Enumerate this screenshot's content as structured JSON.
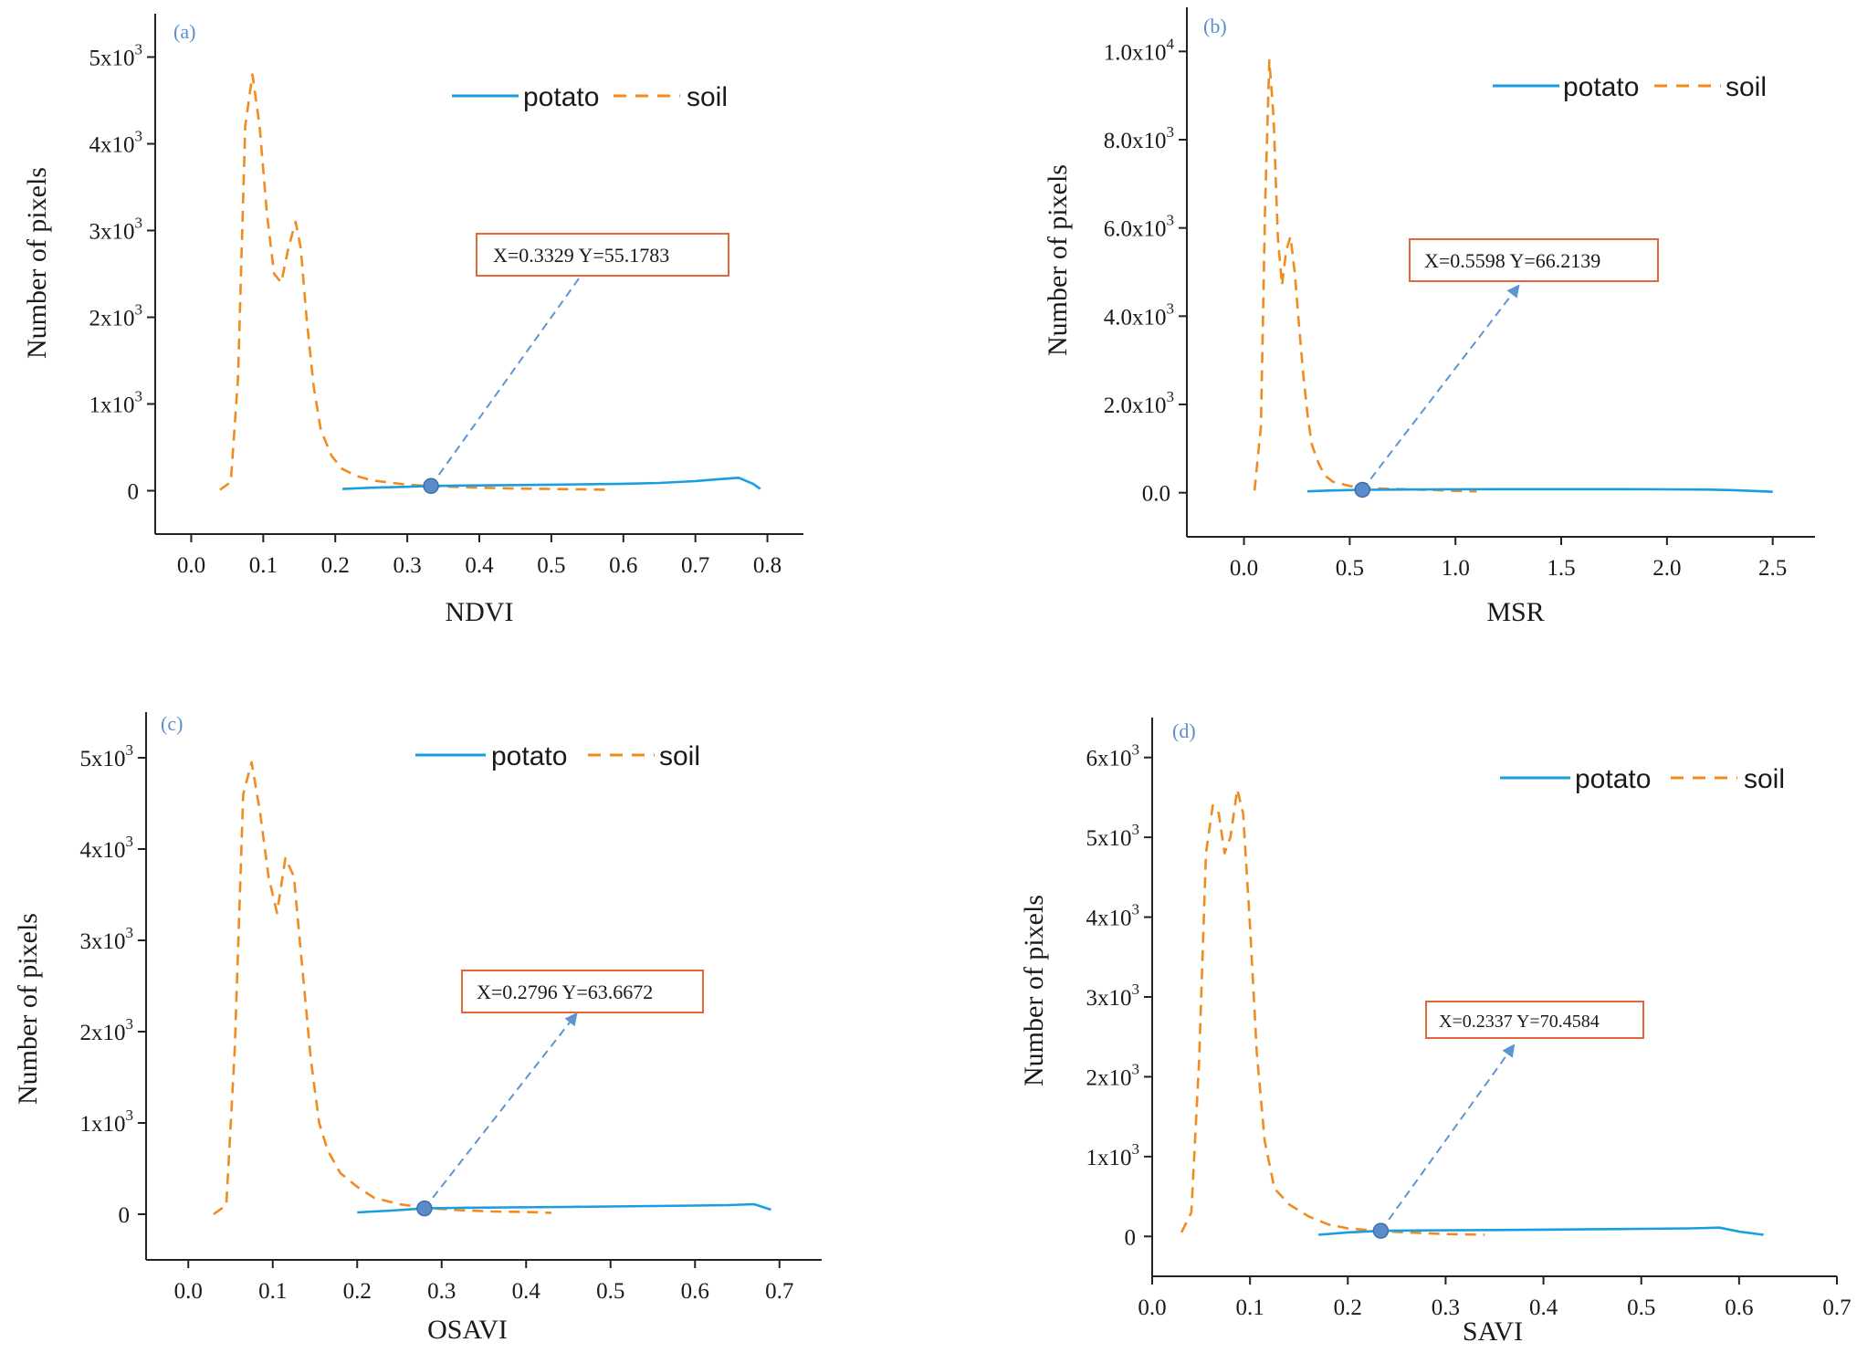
{
  "colors": {
    "potato": "#1a9ee2",
    "soil": "#f28b1e",
    "annotation_box": "#e2673a",
    "arrow": "#5b95d3",
    "marker": "#5b8cc9",
    "axis": "#222222"
  },
  "legend": {
    "potato": "potato",
    "soil": "soil"
  },
  "chart_data": [
    {
      "type": "line",
      "panel_label": "(a)",
      "xlabel": "NDVI",
      "ylabel": "Number of pixels",
      "xlim": [
        -0.05,
        0.85
      ],
      "ylim": [
        -500,
        5500
      ],
      "xticks": [
        0.0,
        0.1,
        0.2,
        0.3,
        0.4,
        0.5,
        0.6,
        0.7,
        0.8
      ],
      "xtick_labels": [
        "0.0",
        "0.1",
        "0.2",
        "0.3",
        "0.4",
        "0.5",
        "0.6",
        "0.7",
        "0.8"
      ],
      "yticks": [
        0,
        1000,
        2000,
        3000,
        4000,
        5000
      ],
      "ytick_base": [
        "0",
        "1x10",
        "2x10",
        "3x10",
        "4x10",
        "5x10"
      ],
      "ytick_exp": [
        "",
        "3",
        "3",
        "3",
        "3",
        "3"
      ],
      "series": [
        {
          "name": "soil",
          "style": "dashed",
          "x": [
            0.04,
            0.055,
            0.065,
            0.075,
            0.085,
            0.095,
            0.105,
            0.115,
            0.125,
            0.135,
            0.145,
            0.152,
            0.16,
            0.17,
            0.18,
            0.195,
            0.21,
            0.23,
            0.25,
            0.28,
            0.3,
            0.33,
            0.36,
            0.4,
            0.45,
            0.5,
            0.55,
            0.58
          ],
          "y": [
            10,
            100,
            1300,
            4200,
            4800,
            4200,
            3200,
            2500,
            2400,
            2800,
            3100,
            2800,
            2000,
            1200,
            700,
            400,
            250,
            170,
            120,
            90,
            70,
            55,
            45,
            35,
            25,
            20,
            15,
            10
          ]
        },
        {
          "name": "potato",
          "style": "solid",
          "x": [
            0.21,
            0.25,
            0.3,
            0.33,
            0.38,
            0.45,
            0.5,
            0.55,
            0.6,
            0.65,
            0.7,
            0.73,
            0.76,
            0.78,
            0.79
          ],
          "y": [
            20,
            35,
            45,
            55,
            60,
            65,
            70,
            75,
            80,
            90,
            110,
            130,
            150,
            80,
            20
          ]
        }
      ],
      "marker": {
        "x": 0.3329,
        "y": 55.1783
      },
      "annotation": "X=0.3329  Y=55.1783",
      "annotation_anchor": {
        "x": 0.56,
        "y": 2700
      }
    },
    {
      "type": "line",
      "panel_label": "(b)",
      "xlabel": "MSR",
      "ylabel": "Number of pixels",
      "xlim": [
        -0.27,
        2.7
      ],
      "ylim": [
        -1000,
        11000
      ],
      "xticks": [
        0.0,
        0.5,
        1.0,
        1.5,
        2.0,
        2.5
      ],
      "xtick_labels": [
        "0.0",
        "0.5",
        "1.0",
        "1.5",
        "2.0",
        "2.5"
      ],
      "yticks": [
        0,
        2000,
        4000,
        6000,
        8000,
        10000
      ],
      "ytick_base": [
        "0.0",
        "2.0x10",
        "4.0x10",
        "6.0x10",
        "8.0x10",
        "1.0x10"
      ],
      "ytick_exp": [
        "",
        "3",
        "3",
        "3",
        "3",
        "4"
      ],
      "series": [
        {
          "name": "soil",
          "style": "dashed",
          "x": [
            0.05,
            0.08,
            0.1,
            0.12,
            0.14,
            0.16,
            0.18,
            0.2,
            0.22,
            0.24,
            0.26,
            0.28,
            0.3,
            0.32,
            0.35,
            0.38,
            0.42,
            0.5,
            0.6,
            0.75,
            0.9,
            1.0,
            1.1
          ],
          "y": [
            50,
            1500,
            6500,
            9800,
            8500,
            5800,
            4700,
            5500,
            5800,
            5000,
            3800,
            2700,
            1800,
            1100,
            700,
            400,
            250,
            150,
            100,
            80,
            60,
            40,
            30
          ]
        },
        {
          "name": "potato",
          "style": "solid",
          "x": [
            0.3,
            0.4,
            0.5,
            0.56,
            0.7,
            0.9,
            1.2,
            1.5,
            1.8,
            2.0,
            2.2,
            2.3,
            2.4,
            2.5
          ],
          "y": [
            30,
            50,
            60,
            66,
            70,
            75,
            80,
            80,
            80,
            75,
            70,
            60,
            40,
            20
          ]
        }
      ],
      "marker": {
        "x": 0.5598,
        "y": 66.2139
      },
      "annotation": "X=0.5598  Y=66.2139",
      "annotation_anchor": {
        "x": 1.3,
        "y": 4700
      }
    },
    {
      "type": "line",
      "panel_label": "(c)",
      "xlabel": "OSAVI",
      "ylabel": "Number of pixels",
      "xlim": [
        -0.05,
        0.75
      ],
      "ylim": [
        -500,
        5500
      ],
      "xticks": [
        0.0,
        0.1,
        0.2,
        0.3,
        0.4,
        0.5,
        0.6,
        0.7
      ],
      "xtick_labels": [
        "0.0",
        "0.1",
        "0.2",
        "0.3",
        "0.4",
        "0.5",
        "0.6",
        "0.7"
      ],
      "yticks": [
        0,
        1000,
        2000,
        3000,
        4000,
        5000
      ],
      "ytick_base": [
        "0",
        "1x10",
        "2x10",
        "3x10",
        "4x10",
        "5x10"
      ],
      "ytick_exp": [
        "",
        "3",
        "3",
        "3",
        "3",
        "3"
      ],
      "series": [
        {
          "name": "soil",
          "style": "dashed",
          "x": [
            0.03,
            0.045,
            0.055,
            0.065,
            0.075,
            0.085,
            0.095,
            0.105,
            0.115,
            0.125,
            0.135,
            0.145,
            0.155,
            0.165,
            0.18,
            0.2,
            0.22,
            0.25,
            0.28,
            0.32,
            0.36,
            0.4,
            0.43
          ],
          "y": [
            0,
            100,
            1800,
            4600,
            4950,
            4400,
            3700,
            3300,
            3900,
            3700,
            2700,
            1700,
            1000,
            700,
            450,
            300,
            180,
            110,
            70,
            45,
            30,
            25,
            15
          ]
        },
        {
          "name": "potato",
          "style": "solid",
          "x": [
            0.2,
            0.24,
            0.28,
            0.32,
            0.38,
            0.45,
            0.5,
            0.55,
            0.6,
            0.64,
            0.67,
            0.69
          ],
          "y": [
            20,
            40,
            64,
            70,
            75,
            80,
            85,
            90,
            95,
            100,
            110,
            50
          ]
        }
      ],
      "marker": {
        "x": 0.2796,
        "y": 63.6672
      },
      "annotation": "X=0.2796  Y=63.6672",
      "annotation_anchor": {
        "x": 0.46,
        "y": 2200
      }
    },
    {
      "type": "line",
      "panel_label": "(d)",
      "xlabel": "SAVI",
      "ylabel": "Number of pixels",
      "xlim": [
        0.0,
        0.7
      ],
      "ylim": [
        -500,
        6500
      ],
      "xticks": [
        0.0,
        0.1,
        0.2,
        0.3,
        0.4,
        0.5,
        0.6,
        0.7
      ],
      "xtick_labels": [
        "0.0",
        "0.1",
        "0.2",
        "0.3",
        "0.4",
        "0.5",
        "0.6",
        "0.7"
      ],
      "yticks": [
        0,
        1000,
        2000,
        3000,
        4000,
        5000,
        6000
      ],
      "ytick_base": [
        "0",
        "1x10",
        "2x10",
        "3x10",
        "4x10",
        "5x10",
        "6x10"
      ],
      "ytick_exp": [
        "",
        "3",
        "3",
        "3",
        "3",
        "3",
        "3"
      ],
      "series": [
        {
          "name": "soil",
          "style": "dashed",
          "x": [
            0.03,
            0.04,
            0.048,
            0.055,
            0.062,
            0.068,
            0.074,
            0.08,
            0.087,
            0.093,
            0.1,
            0.107,
            0.115,
            0.125,
            0.14,
            0.16,
            0.18,
            0.2,
            0.23,
            0.26,
            0.3,
            0.34
          ],
          "y": [
            50,
            300,
            2200,
            4800,
            5400,
            5300,
            4800,
            5000,
            5600,
            5300,
            3900,
            2300,
            1200,
            600,
            400,
            250,
            150,
            100,
            70,
            50,
            30,
            20
          ]
        },
        {
          "name": "potato",
          "style": "solid",
          "x": [
            0.17,
            0.2,
            0.2337,
            0.28,
            0.35,
            0.4,
            0.45,
            0.5,
            0.55,
            0.58,
            0.6,
            0.625
          ],
          "y": [
            20,
            50,
            70,
            75,
            80,
            85,
            90,
            95,
            100,
            110,
            60,
            20
          ]
        }
      ],
      "marker": {
        "x": 0.2337,
        "y": 70.4584
      },
      "annotation": "X=0.2337  Y=70.4584",
      "annotation_anchor": {
        "x": 0.37,
        "y": 2400
      }
    }
  ]
}
